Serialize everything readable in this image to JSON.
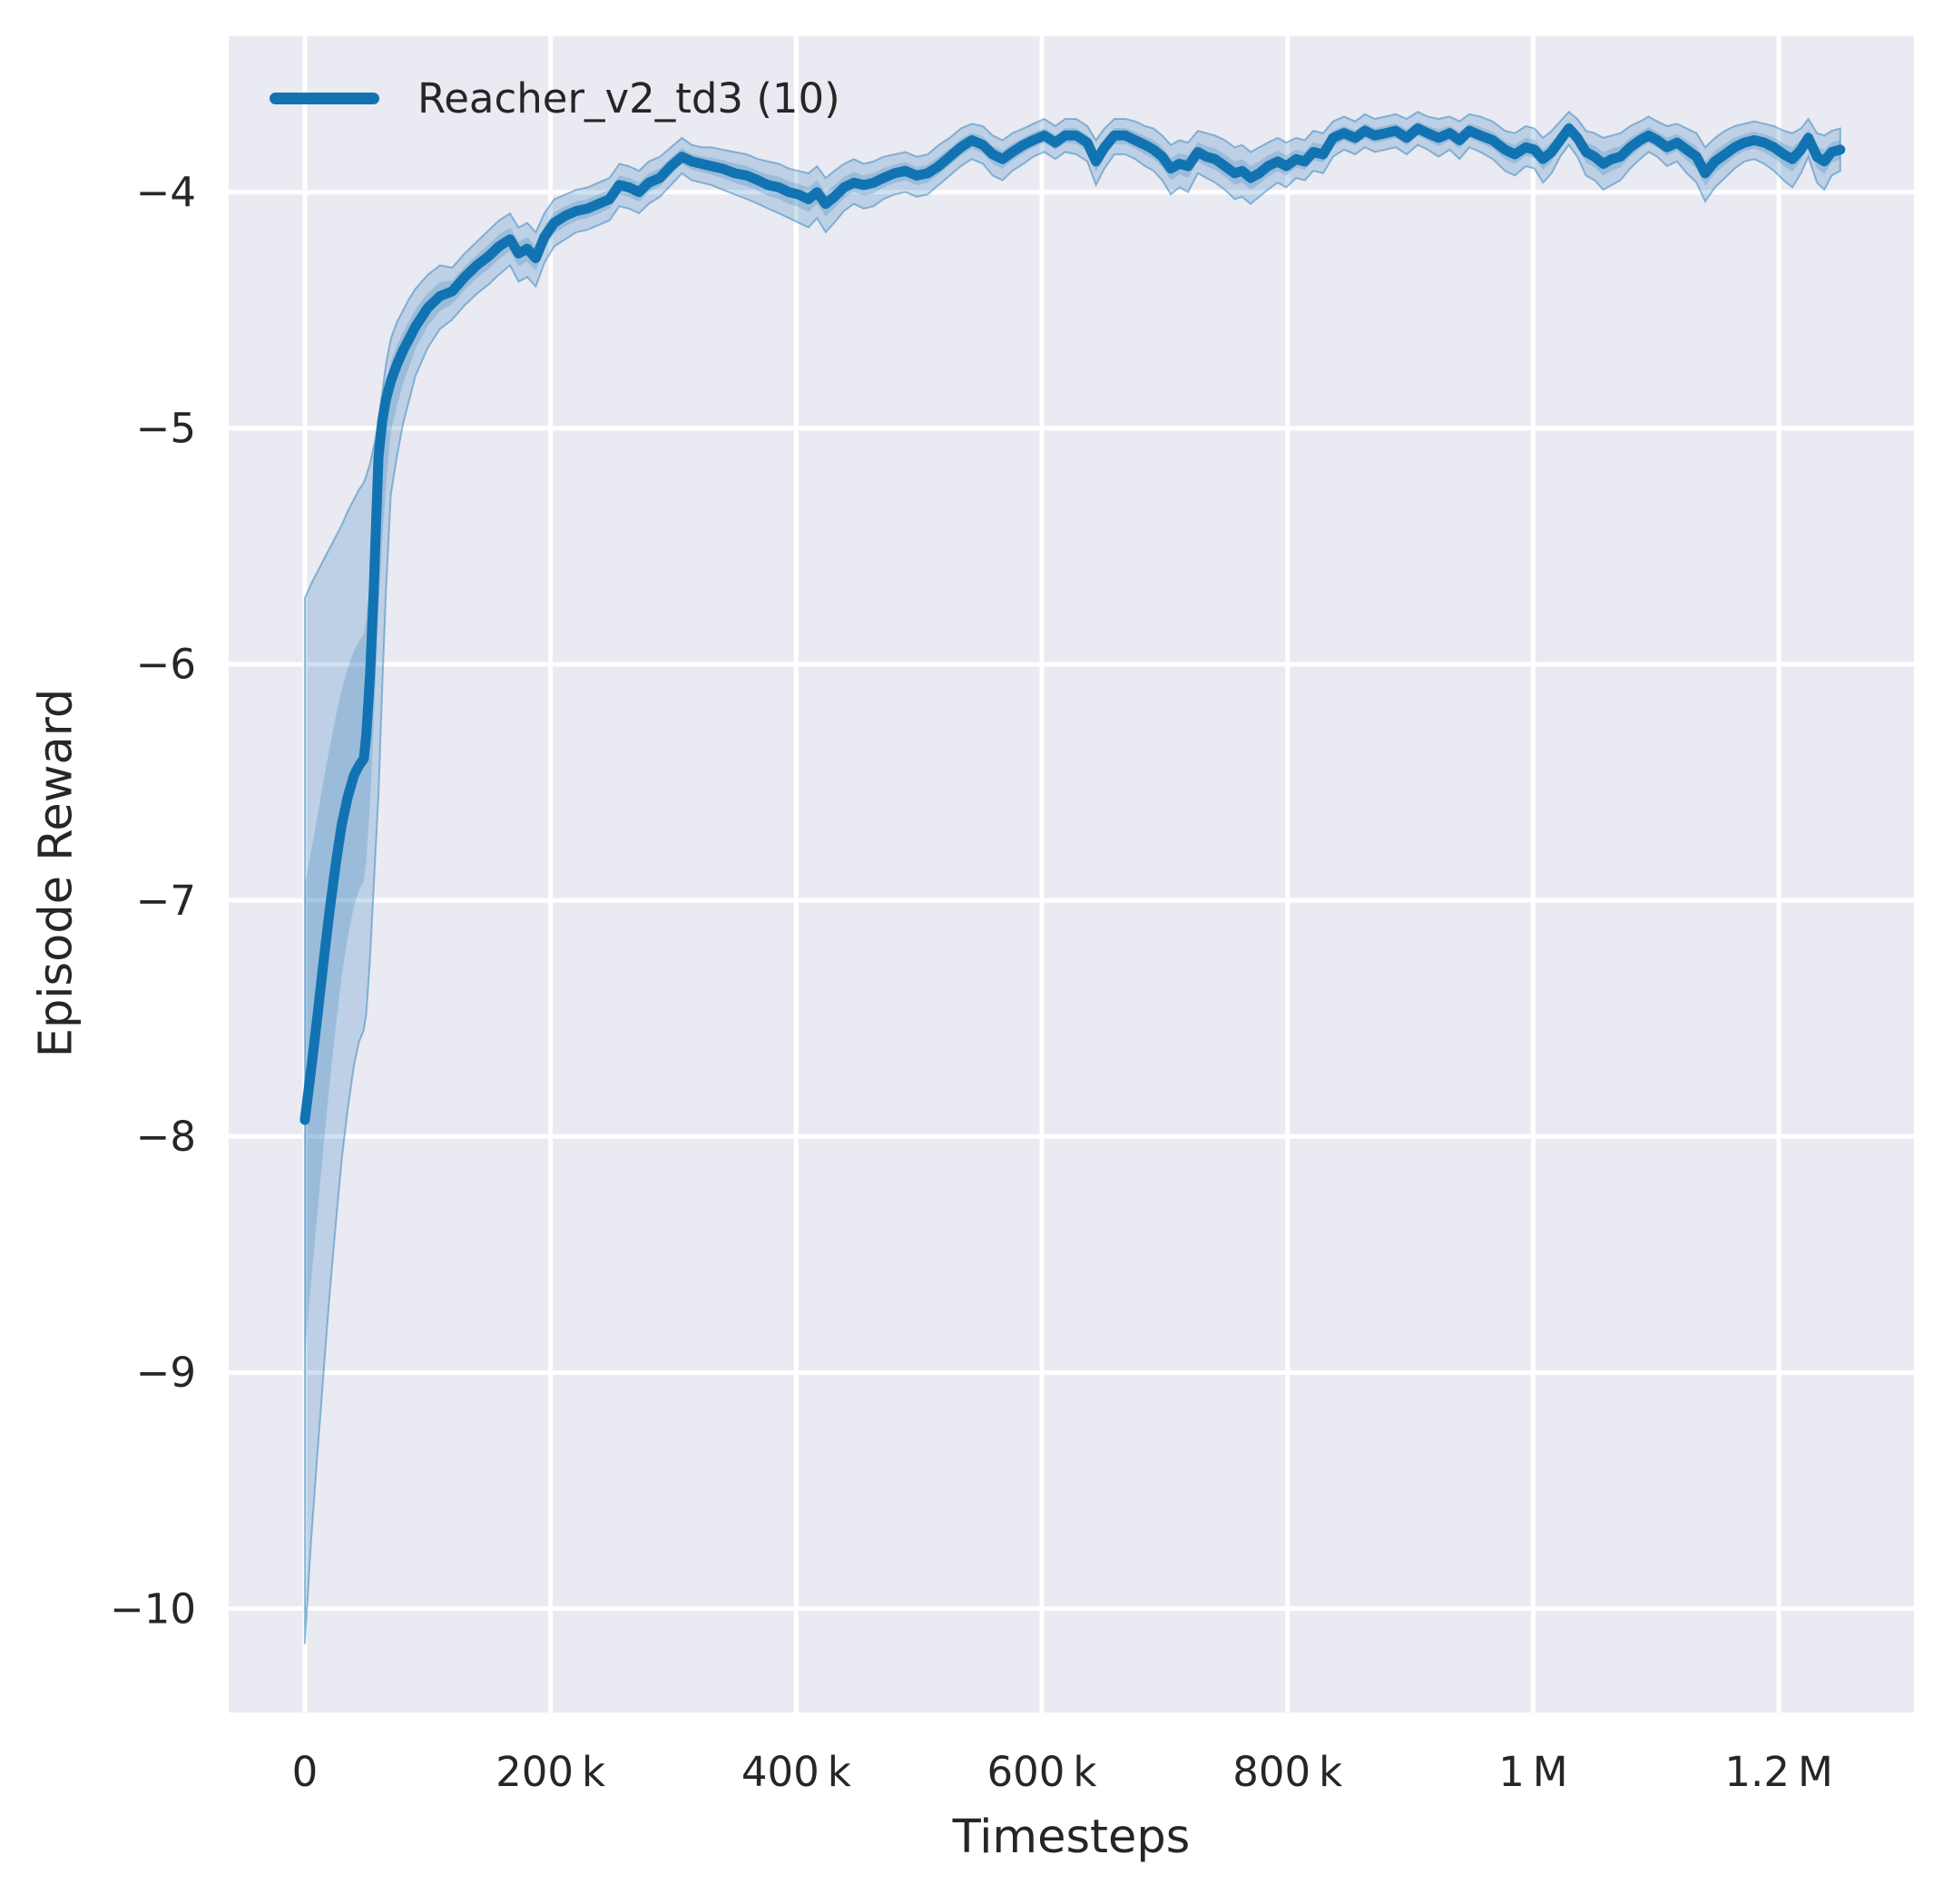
{
  "figure": {
    "background": "#ffffff",
    "text_color": "#262626"
  },
  "chart_data": {
    "type": "line",
    "title": "",
    "xlabel": "Timesteps",
    "ylabel": "Episode Reward",
    "grid": true,
    "plot_bg": "#eaeaf2",
    "grid_color": "#ffffff",
    "legend_position": "upper-left",
    "legend": [
      {
        "label": "Reacher_v2_td3 (10)",
        "color": "#1273b2"
      }
    ],
    "xlim": [
      -62000,
      1310000
    ],
    "ylim": [
      -10.44,
      -3.34
    ],
    "x_ticks": [
      {
        "value": 0,
        "label": "0"
      },
      {
        "value": 200000,
        "label": "200 k"
      },
      {
        "value": 400000,
        "label": "400 k"
      },
      {
        "value": 600000,
        "label": "600 k"
      },
      {
        "value": 800000,
        "label": "800 k"
      },
      {
        "value": 1000000,
        "label": "1 M"
      },
      {
        "value": 1200000,
        "label": "1.2 M"
      }
    ],
    "y_ticks": [
      {
        "value": -4,
        "label": "−4"
      },
      {
        "value": -5,
        "label": "−5"
      },
      {
        "value": -6,
        "label": "−6"
      },
      {
        "value": -7,
        "label": "−7"
      },
      {
        "value": -8,
        "label": "−8"
      },
      {
        "value": -9,
        "label": "−9"
      },
      {
        "value": -10,
        "label": "−10"
      }
    ],
    "series": [
      {
        "name": "Reacher_v2_td3 (10)",
        "color": "#1273b2",
        "band_color": "#1f77b4",
        "band_opacity": 0.22,
        "points_format": [
          "timesteps",
          "mean",
          "band_low",
          "band_high"
        ],
        "points": [
          [
            0,
            -7.93,
            -10.15,
            -5.72
          ],
          [
            5000,
            -7.72,
            -9.72,
            -5.66
          ],
          [
            10000,
            -7.5,
            -9.36,
            -5.61
          ],
          [
            15000,
            -7.27,
            -9.02,
            -5.56
          ],
          [
            20000,
            -7.05,
            -8.68,
            -5.51
          ],
          [
            25000,
            -6.85,
            -8.38,
            -5.46
          ],
          [
            30000,
            -6.68,
            -8.1,
            -5.41
          ],
          [
            35000,
            -6.56,
            -7.88,
            -5.35
          ],
          [
            40000,
            -6.47,
            -7.7,
            -5.3
          ],
          [
            44000,
            -6.43,
            -7.6,
            -5.26
          ],
          [
            48000,
            -6.4,
            -7.55,
            -5.23
          ],
          [
            50000,
            -6.3,
            -7.48,
            -5.2
          ],
          [
            53000,
            -6.05,
            -7.25,
            -5.15
          ],
          [
            56000,
            -5.7,
            -6.95,
            -5.08
          ],
          [
            58000,
            -5.4,
            -6.75,
            -5.03
          ],
          [
            60000,
            -5.12,
            -6.55,
            -4.97
          ],
          [
            63000,
            -4.97,
            -6.1,
            -4.85
          ],
          [
            66000,
            -4.88,
            -5.7,
            -4.73
          ],
          [
            70000,
            -4.8,
            -5.28,
            -4.62
          ],
          [
            75000,
            -4.73,
            -5.12,
            -4.55
          ],
          [
            80000,
            -4.67,
            -4.98,
            -4.5
          ],
          [
            85000,
            -4.62,
            -4.88,
            -4.45
          ],
          [
            90000,
            -4.57,
            -4.78,
            -4.41
          ],
          [
            100000,
            -4.49,
            -4.66,
            -4.35
          ],
          [
            110000,
            -4.44,
            -4.58,
            -4.31
          ],
          [
            120000,
            -4.42,
            -4.54,
            -4.32
          ],
          [
            130000,
            -4.36,
            -4.48,
            -4.26
          ],
          [
            140000,
            -4.31,
            -4.43,
            -4.21
          ],
          [
            150000,
            -4.27,
            -4.39,
            -4.16
          ],
          [
            158000,
            -4.23,
            -4.35,
            -4.12
          ],
          [
            167000,
            -4.2,
            -4.31,
            -4.09
          ],
          [
            174000,
            -4.26,
            -4.38,
            -4.15
          ],
          [
            181000,
            -4.24,
            -4.36,
            -4.13
          ],
          [
            188000,
            -4.28,
            -4.4,
            -4.17
          ],
          [
            195000,
            -4.19,
            -4.3,
            -4.09
          ],
          [
            203000,
            -4.13,
            -4.23,
            -4.03
          ],
          [
            212000,
            -4.1,
            -4.2,
            -4.01
          ],
          [
            221000,
            -4.08,
            -4.17,
            -3.99
          ],
          [
            230000,
            -4.07,
            -4.16,
            -3.98
          ],
          [
            239000,
            -4.05,
            -4.14,
            -3.96
          ],
          [
            248000,
            -4.03,
            -4.12,
            -3.94
          ],
          [
            256000,
            -3.97,
            -4.06,
            -3.88
          ],
          [
            264000,
            -3.98,
            -4.07,
            -3.89
          ],
          [
            272000,
            -4.0,
            -4.09,
            -3.91
          ],
          [
            280000,
            -3.96,
            -4.05,
            -3.87
          ],
          [
            289000,
            -3.94,
            -4.02,
            -3.85
          ],
          [
            298000,
            -3.89,
            -3.97,
            -3.81
          ],
          [
            307000,
            -3.85,
            -3.92,
            -3.77
          ],
          [
            315000,
            -3.87,
            -3.95,
            -3.8
          ],
          [
            323000,
            -3.88,
            -3.96,
            -3.81
          ],
          [
            331000,
            -3.89,
            -3.97,
            -3.81
          ],
          [
            340000,
            -3.9,
            -3.99,
            -3.82
          ],
          [
            350000,
            -3.92,
            -4.01,
            -3.83
          ],
          [
            360000,
            -3.93,
            -4.03,
            -3.84
          ],
          [
            369000,
            -3.95,
            -4.05,
            -3.86
          ],
          [
            377000,
            -3.97,
            -4.07,
            -3.87
          ],
          [
            386000,
            -3.98,
            -4.09,
            -3.88
          ],
          [
            394000,
            -4.0,
            -4.11,
            -3.9
          ],
          [
            402000,
            -4.01,
            -4.13,
            -3.91
          ],
          [
            410000,
            -4.03,
            -4.15,
            -3.92
          ],
          [
            417000,
            -4.0,
            -4.11,
            -3.89
          ],
          [
            424000,
            -4.05,
            -4.17,
            -3.94
          ],
          [
            431000,
            -4.02,
            -4.13,
            -3.91
          ],
          [
            439000,
            -3.98,
            -4.08,
            -3.88
          ],
          [
            447000,
            -3.96,
            -4.05,
            -3.86
          ],
          [
            455000,
            -3.97,
            -4.07,
            -3.88
          ],
          [
            463000,
            -3.96,
            -4.06,
            -3.87
          ],
          [
            471000,
            -3.94,
            -4.03,
            -3.85
          ],
          [
            480000,
            -3.92,
            -4.01,
            -3.84
          ],
          [
            489000,
            -3.91,
            -4.0,
            -3.83
          ],
          [
            498000,
            -3.93,
            -4.02,
            -3.85
          ],
          [
            507000,
            -3.92,
            -4.01,
            -3.84
          ],
          [
            516000,
            -3.89,
            -3.97,
            -3.8
          ],
          [
            525000,
            -3.85,
            -3.93,
            -3.77
          ],
          [
            534000,
            -3.81,
            -3.89,
            -3.73
          ],
          [
            543000,
            -3.78,
            -3.86,
            -3.71
          ],
          [
            552000,
            -3.8,
            -3.88,
            -3.72
          ],
          [
            560000,
            -3.84,
            -3.93,
            -3.76
          ],
          [
            568000,
            -3.86,
            -3.95,
            -3.78
          ],
          [
            576000,
            -3.83,
            -3.91,
            -3.75
          ],
          [
            585000,
            -3.8,
            -3.88,
            -3.73
          ],
          [
            593000,
            -3.78,
            -3.85,
            -3.71
          ],
          [
            602000,
            -3.76,
            -3.83,
            -3.69
          ],
          [
            611000,
            -3.79,
            -3.86,
            -3.72
          ],
          [
            619000,
            -3.76,
            -3.83,
            -3.69
          ],
          [
            628000,
            -3.76,
            -3.84,
            -3.69
          ],
          [
            637000,
            -3.79,
            -3.87,
            -3.72
          ],
          [
            644000,
            -3.87,
            -3.97,
            -3.78
          ],
          [
            651000,
            -3.81,
            -3.9,
            -3.73
          ],
          [
            659000,
            -3.76,
            -3.84,
            -3.69
          ],
          [
            668000,
            -3.76,
            -3.84,
            -3.69
          ],
          [
            676000,
            -3.78,
            -3.86,
            -3.7
          ],
          [
            684000,
            -3.8,
            -3.89,
            -3.72
          ],
          [
            691000,
            -3.82,
            -3.91,
            -3.73
          ],
          [
            698000,
            -3.85,
            -3.95,
            -3.76
          ],
          [
            705000,
            -3.9,
            -4.01,
            -3.8
          ],
          [
            712000,
            -3.88,
            -3.98,
            -3.78
          ],
          [
            719000,
            -3.89,
            -4.0,
            -3.79
          ],
          [
            727000,
            -3.83,
            -3.92,
            -3.74
          ],
          [
            734000,
            -3.85,
            -3.94,
            -3.75
          ],
          [
            741000,
            -3.86,
            -3.96,
            -3.76
          ],
          [
            749000,
            -3.89,
            -3.99,
            -3.78
          ],
          [
            757000,
            -3.92,
            -4.03,
            -3.81
          ],
          [
            763000,
            -3.91,
            -4.02,
            -3.8
          ],
          [
            770000,
            -3.94,
            -4.05,
            -3.83
          ],
          [
            777000,
            -3.92,
            -4.02,
            -3.81
          ],
          [
            784000,
            -3.89,
            -3.99,
            -3.79
          ],
          [
            792000,
            -3.87,
            -3.96,
            -3.77
          ],
          [
            799000,
            -3.89,
            -3.98,
            -3.79
          ],
          [
            807000,
            -3.86,
            -3.94,
            -3.77
          ],
          [
            814000,
            -3.87,
            -3.95,
            -3.78
          ],
          [
            821000,
            -3.83,
            -3.91,
            -3.74
          ],
          [
            829000,
            -3.84,
            -3.92,
            -3.75
          ],
          [
            837000,
            -3.77,
            -3.85,
            -3.7
          ],
          [
            846000,
            -3.75,
            -3.82,
            -3.68
          ],
          [
            855000,
            -3.77,
            -3.84,
            -3.7
          ],
          [
            863000,
            -3.74,
            -3.81,
            -3.67
          ],
          [
            871000,
            -3.76,
            -3.83,
            -3.69
          ],
          [
            880000,
            -3.75,
            -3.82,
            -3.68
          ],
          [
            888000,
            -3.74,
            -3.81,
            -3.67
          ],
          [
            897000,
            -3.77,
            -3.84,
            -3.69
          ],
          [
            906000,
            -3.73,
            -3.8,
            -3.66
          ],
          [
            914000,
            -3.75,
            -3.82,
            -3.68
          ],
          [
            923000,
            -3.77,
            -3.85,
            -3.69
          ],
          [
            932000,
            -3.75,
            -3.82,
            -3.68
          ],
          [
            940000,
            -3.78,
            -3.86,
            -3.7
          ],
          [
            948000,
            -3.74,
            -3.81,
            -3.67
          ],
          [
            957000,
            -3.76,
            -3.83,
            -3.68
          ],
          [
            967000,
            -3.78,
            -3.86,
            -3.7
          ],
          [
            977000,
            -3.82,
            -3.91,
            -3.74
          ],
          [
            985000,
            -3.84,
            -3.93,
            -3.75
          ],
          [
            994000,
            -3.81,
            -3.89,
            -3.72
          ],
          [
            1001000,
            -3.82,
            -3.9,
            -3.73
          ],
          [
            1008000,
            -3.86,
            -3.96,
            -3.77
          ],
          [
            1015000,
            -3.83,
            -3.92,
            -3.74
          ],
          [
            1022000,
            -3.78,
            -3.85,
            -3.7
          ],
          [
            1029000,
            -3.73,
            -3.8,
            -3.66
          ],
          [
            1036000,
            -3.77,
            -3.85,
            -3.69
          ],
          [
            1043000,
            -3.83,
            -3.93,
            -3.74
          ],
          [
            1050000,
            -3.85,
            -3.95,
            -3.75
          ],
          [
            1057000,
            -3.88,
            -3.99,
            -3.77
          ],
          [
            1064000,
            -3.86,
            -3.97,
            -3.76
          ],
          [
            1071000,
            -3.85,
            -3.95,
            -3.75
          ],
          [
            1079000,
            -3.81,
            -3.9,
            -3.72
          ],
          [
            1087000,
            -3.78,
            -3.86,
            -3.7
          ],
          [
            1094000,
            -3.76,
            -3.83,
            -3.68
          ],
          [
            1101000,
            -3.78,
            -3.85,
            -3.7
          ],
          [
            1109000,
            -3.81,
            -3.89,
            -3.72
          ],
          [
            1117000,
            -3.79,
            -3.87,
            -3.71
          ],
          [
            1125000,
            -3.82,
            -3.92,
            -3.73
          ],
          [
            1133000,
            -3.85,
            -3.96,
            -3.75
          ],
          [
            1140000,
            -3.92,
            -4.04,
            -3.81
          ],
          [
            1148000,
            -3.87,
            -3.98,
            -3.77
          ],
          [
            1156000,
            -3.84,
            -3.94,
            -3.74
          ],
          [
            1164000,
            -3.81,
            -3.9,
            -3.72
          ],
          [
            1172000,
            -3.79,
            -3.87,
            -3.71
          ],
          [
            1180000,
            -3.78,
            -3.86,
            -3.7
          ],
          [
            1188000,
            -3.79,
            -3.88,
            -3.71
          ],
          [
            1196000,
            -3.81,
            -3.91,
            -3.72
          ],
          [
            1204000,
            -3.84,
            -3.95,
            -3.74
          ],
          [
            1211000,
            -3.86,
            -3.98,
            -3.75
          ],
          [
            1218000,
            -3.82,
            -3.92,
            -3.73
          ],
          [
            1224000,
            -3.77,
            -3.85,
            -3.69
          ],
          [
            1231000,
            -3.85,
            -3.96,
            -3.75
          ],
          [
            1237000,
            -3.87,
            -3.99,
            -3.76
          ],
          [
            1243000,
            -3.83,
            -3.93,
            -3.74
          ],
          [
            1250000,
            -3.82,
            -3.91,
            -3.73
          ]
        ]
      }
    ]
  }
}
